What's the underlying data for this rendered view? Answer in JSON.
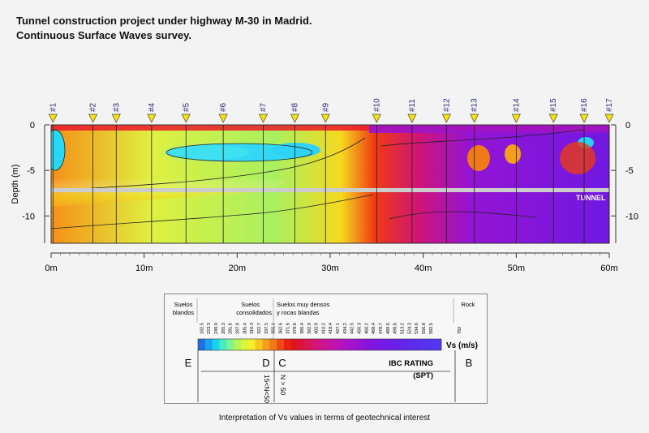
{
  "title": {
    "line1": "Tunnel construction project under highway M-30 in Madrid.",
    "line2": "Continuous Surface Waves survey."
  },
  "chart_data": {
    "type": "heatmap",
    "ylabel": "Depth (m)",
    "x_ticks": [
      "0m",
      "10m",
      "20m",
      "30m",
      "40m",
      "50m",
      "60m"
    ],
    "x_range": [
      0,
      60
    ],
    "y_ticks": [
      "0",
      "-5",
      "-10"
    ],
    "y_range": [
      -13,
      0
    ],
    "stations": [
      {
        "label": "#1",
        "x": 0.2
      },
      {
        "label": "#2",
        "x": 4.5
      },
      {
        "label": "#3",
        "x": 7.0
      },
      {
        "label": "#4",
        "x": 10.8
      },
      {
        "label": "#5",
        "x": 14.5
      },
      {
        "label": "#6",
        "x": 18.5
      },
      {
        "label": "#7",
        "x": 22.8
      },
      {
        "label": "#8",
        "x": 26.2
      },
      {
        "label": "#9",
        "x": 29.5
      },
      {
        "label": "#10",
        "x": 35.0
      },
      {
        "label": "#11",
        "x": 38.8
      },
      {
        "label": "#12",
        "x": 42.5
      },
      {
        "label": "#13",
        "x": 45.5
      },
      {
        "label": "#14",
        "x": 50.0
      },
      {
        "label": "#15",
        "x": 54.0
      },
      {
        "label": "#16",
        "x": 57.3
      },
      {
        "label": "#17",
        "x": 60.0
      }
    ],
    "tunnel_depth": -7,
    "tunnel_label": "TUNNEL"
  },
  "legend": {
    "category_soft": [
      "Suelos",
      "blandos"
    ],
    "category_consolidated": [
      "Suelos",
      "consolidados"
    ],
    "category_dense": [
      "Suelos muy densos",
      "y rocas blandas"
    ],
    "category_rock": "Rock",
    "vs_values": [
      "182.5",
      "223.3",
      "249.0",
      "265.3",
      "281.6",
      "297.9",
      "305.4",
      "316.3",
      "322.7",
      "337.5",
      "355.1",
      "362.6",
      "371.6",
      "378.8",
      "385.4",
      "392.9",
      "402.9",
      "410.2",
      "418.4",
      "427.1",
      "434.2",
      "442.5",
      "450.3",
      "460.2",
      "468.4",
      "478.7",
      "489.6",
      "498.6",
      "513.2",
      "524.3",
      "534.6",
      "556.8",
      "582.5",
      "782"
    ],
    "colors": [
      "#1e6fe0",
      "#19a3f2",
      "#19d4f0",
      "#45ecc4",
      "#7ef58e",
      "#b4f55a",
      "#dcf53c",
      "#f5ee28",
      "#f7c81f",
      "#f5a01c",
      "#f27a18",
      "#ef4a14",
      "#e82410",
      "#e0141e",
      "#dc143c",
      "#d8145a",
      "#d41478",
      "#cc1490",
      "#c414a4",
      "#bb14b4",
      "#b014c2",
      "#a414cc",
      "#9814d4",
      "#8c14da",
      "#8014e0",
      "#7818e4",
      "#701ce6",
      "#6820e8",
      "#6424ea",
      "#6028ec",
      "#5c2cee",
      "#5830f0",
      "#5434f2",
      "#5038f4"
    ],
    "vs_label": "Vs (m/s)",
    "rating_E": "E",
    "rating_D": "D",
    "rating_C": "C",
    "rating_B": "B",
    "ibc_rating": "IBC RATING",
    "spt": "(SPT)",
    "n_d": "15<N<50",
    "n_c": "N > 50"
  },
  "caption": "Interpretation of Vs values in terms of geotechnical interest"
}
